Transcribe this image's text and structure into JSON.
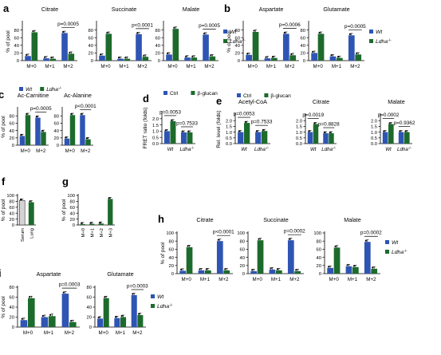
{
  "colors": {
    "blue": "#2e55b4",
    "green": "#1d6b2c",
    "gray": "#d4d4d4",
    "axis": "#000000"
  },
  "chart_data": [
    {
      "id": "a-citrate",
      "panel": "a",
      "type": "bar",
      "title": "Citrate",
      "ylabel": "% of pool",
      "ylim": [
        0,
        100
      ],
      "yticks": [
        0,
        20,
        40,
        60,
        80
      ],
      "categories": [
        "M+0",
        "M+1",
        "M+2"
      ],
      "series": [
        {
          "name": "Wt",
          "color": "blue",
          "values": [
            12,
            6,
            72
          ]
        },
        {
          "name": "Ldha-/-",
          "color": "green",
          "values": [
            74,
            5,
            18
          ]
        }
      ],
      "annotations": [
        {
          "text": "p=0.0005",
          "cats": [
            2,
            2
          ]
        }
      ]
    },
    {
      "id": "a-succinate",
      "panel": "",
      "type": "bar",
      "title": "Succinate",
      "ylabel": "",
      "ylim": [
        0,
        100
      ],
      "yticks": [
        0,
        20,
        40,
        60,
        80
      ],
      "categories": [
        "M+0",
        "M+1",
        "M+2"
      ],
      "series": [
        {
          "name": "Wt",
          "color": "blue",
          "values": [
            13,
            5,
            69
          ]
        },
        {
          "name": "Ldha-/-",
          "color": "green",
          "values": [
            70,
            5,
            10
          ]
        }
      ],
      "annotations": [
        {
          "text": "p<0.0001",
          "cats": [
            2,
            2
          ]
        }
      ]
    },
    {
      "id": "a-malate",
      "panel": "",
      "type": "bar",
      "title": "Malate",
      "ylabel": "",
      "ylim": [
        0,
        100
      ],
      "yticks": [
        0,
        20,
        40,
        60,
        80
      ],
      "categories": [
        "M+0",
        "M+1",
        "M+2"
      ],
      "series": [
        {
          "name": "Wt",
          "color": "blue",
          "values": [
            16,
            8,
            68
          ]
        },
        {
          "name": "Ldha-/-",
          "color": "green",
          "values": [
            83,
            8,
            11
          ]
        }
      ],
      "annotations": [
        {
          "text": "p=0.0005",
          "cats": [
            2,
            2
          ]
        }
      ],
      "legend": {
        "items": [
          "Wt",
          "Ldha-/-"
        ]
      }
    },
    {
      "id": "b-aspartate",
      "panel": "b",
      "type": "bar",
      "title": "Aspartate",
      "ylabel": "% of pool",
      "ylim": [
        0,
        100
      ],
      "yticks": [
        0,
        20,
        40,
        60,
        80
      ],
      "categories": [
        "M+0",
        "M+1",
        "M+2"
      ],
      "series": [
        {
          "name": "Wt",
          "color": "blue",
          "values": [
            15,
            6,
            70
          ]
        },
        {
          "name": "Ldha-/-",
          "color": "green",
          "values": [
            75,
            7,
            14
          ]
        }
      ],
      "annotations": [
        {
          "text": "p=0.0006",
          "cats": [
            2,
            2
          ]
        }
      ]
    },
    {
      "id": "b-glutamate",
      "panel": "",
      "type": "bar",
      "title": "Glutamate",
      "ylabel": "",
      "ylim": [
        0,
        100
      ],
      "yticks": [
        0,
        20,
        40,
        60,
        80
      ],
      "categories": [
        "M+0",
        "M+1",
        "M+2"
      ],
      "series": [
        {
          "name": "Wt",
          "color": "blue",
          "values": [
            20,
            11,
            66
          ]
        },
        {
          "name": "Ldha-/-",
          "color": "green",
          "values": [
            70,
            7,
            16
          ]
        }
      ],
      "annotations": [
        {
          "text": "p=0.0005",
          "cats": [
            2,
            2
          ]
        }
      ],
      "legend": {
        "items": [
          "Wt",
          "Ldha-/-"
        ]
      }
    },
    {
      "id": "c-acc",
      "panel": "c",
      "type": "bar",
      "title": "Ac-Carnitine",
      "ylabel": "% of pool",
      "ylim": [
        0,
        100
      ],
      "yticks": [
        0,
        20,
        40,
        60,
        80
      ],
      "categories": [
        "M+0",
        "M+2"
      ],
      "series": [
        {
          "name": "Wt",
          "color": "blue",
          "values": [
            25,
            75
          ]
        },
        {
          "name": "Ldha-/-",
          "color": "green",
          "values": [
            82,
            36
          ]
        }
      ],
      "annotations": [
        {
          "text": "p=0.0005",
          "cats": [
            1,
            1
          ]
        }
      ],
      "legend": {
        "items": [
          "Wt",
          "Ldha-/-"
        ],
        "pos": "top"
      }
    },
    {
      "id": "c-aca",
      "panel": "",
      "type": "bar",
      "title": "Ac-Alanine",
      "ylabel": "",
      "ylim": [
        0,
        100
      ],
      "yticks": [
        0,
        20,
        40,
        60,
        80
      ],
      "categories": [
        "M+0",
        "M+2"
      ],
      "series": [
        {
          "name": "Wt",
          "color": "blue",
          "values": [
            18,
            82
          ]
        },
        {
          "name": "Ldha-/-",
          "color": "green",
          "values": [
            82,
            16
          ]
        }
      ],
      "annotations": [
        {
          "text": "p<0.0001",
          "cats": [
            1,
            1
          ]
        }
      ]
    },
    {
      "id": "d-fret",
      "panel": "d",
      "type": "bar",
      "title": "",
      "ylabel": "FRET ratio (folds)",
      "ylim": [
        0,
        2.5
      ],
      "yticks": [
        0,
        0.5,
        1,
        1.5,
        2
      ],
      "yfmt": 1,
      "categories": [
        "Wt",
        "Ldha-/-"
      ],
      "series": [
        {
          "name": "Ctrl",
          "color": "blue",
          "values": [
            1.0,
            0.9
          ]
        },
        {
          "name": "β-glucan",
          "color": "green",
          "values": [
            1.8,
            0.9
          ]
        }
      ],
      "annotations": [
        {
          "text": "p=0.0053",
          "cats": [
            0,
            0
          ]
        },
        {
          "text": "p=0.7533",
          "cats": [
            1,
            1
          ]
        }
      ],
      "legend": {
        "items": [
          "Ctrl",
          "β-glucan"
        ],
        "pos": "top"
      }
    },
    {
      "id": "e-acoa",
      "panel": "e",
      "type": "bar",
      "title": "Acetyl-CoA",
      "ylabel": "Rel. level (folds)",
      "ylim": [
        0,
        2.5
      ],
      "yticks": [
        0,
        0.5,
        1,
        1.5,
        2
      ],
      "yfmt": 1,
      "categories": [
        "Wt",
        "Ldha-/-"
      ],
      "series": [
        {
          "name": "Ctrl",
          "color": "blue",
          "values": [
            1.0,
            1.0
          ]
        },
        {
          "name": "β-glucan",
          "color": "green",
          "values": [
            1.8,
            1.1
          ]
        }
      ],
      "annotations": [
        {
          "text": "p=0.0053",
          "cats": [
            0,
            0
          ]
        },
        {
          "text": "p=0.7533",
          "cats": [
            1,
            1
          ]
        }
      ],
      "legend": {
        "items": [
          "Ctrl",
          "β-glucan"
        ],
        "pos": "top"
      }
    },
    {
      "id": "e-citrate",
      "panel": "",
      "type": "bar",
      "title": "Citrate",
      "ylabel": "",
      "ylim": [
        0,
        2.5
      ],
      "yticks": [
        0,
        0.5,
        1,
        1.5,
        2
      ],
      "yfmt": 1,
      "categories": [
        "Wt",
        "Ldha-/-"
      ],
      "series": [
        {
          "name": "Ctrl",
          "color": "blue",
          "values": [
            1.0,
            0.9
          ]
        },
        {
          "name": "β-glucan",
          "color": "green",
          "values": [
            1.7,
            0.9
          ]
        }
      ],
      "annotations": [
        {
          "text": "p=0.0019",
          "cats": [
            0,
            0
          ]
        },
        {
          "text": "p=0.8828",
          "cats": [
            1,
            1
          ]
        }
      ]
    },
    {
      "id": "e-malate",
      "panel": "",
      "type": "bar",
      "title": "Malate",
      "ylabel": "",
      "ylim": [
        0,
        2.5
      ],
      "yticks": [
        0,
        0.5,
        1,
        1.5,
        2
      ],
      "yfmt": 1,
      "categories": [
        "Wt",
        "Ldha-/-"
      ],
      "series": [
        {
          "name": "Ctrl",
          "color": "blue",
          "values": [
            1.0,
            1.0
          ]
        },
        {
          "name": "β-glucan",
          "color": "green",
          "values": [
            1.7,
            1.0
          ]
        }
      ],
      "annotations": [
        {
          "text": "p=0.0002",
          "cats": [
            0,
            0
          ]
        },
        {
          "text": "p=0.9362",
          "cats": [
            1,
            1
          ]
        }
      ]
    },
    {
      "id": "f",
      "panel": "f",
      "type": "bar",
      "title": "",
      "ylabel": "% of pool",
      "ylim": [
        0,
        100
      ],
      "yticks": [
        0,
        20,
        40,
        60,
        80,
        100
      ],
      "categories": [
        "Serum",
        "Lung"
      ],
      "tickrot": true,
      "series": [
        {
          "name": "",
          "color": "gray",
          "values": [
            83,
            null
          ]
        },
        {
          "name": "",
          "color": "green",
          "values": [
            null,
            77
          ]
        }
      ]
    },
    {
      "id": "g",
      "panel": "g",
      "type": "bar",
      "title": "",
      "ylabel": "% of pool",
      "ylim": [
        0,
        100
      ],
      "yticks": [
        0,
        20,
        40,
        60,
        80,
        100
      ],
      "categories": [
        "M+0",
        "M+1",
        "M+2",
        "M+3"
      ],
      "tickrot": true,
      "series": [
        {
          "name": "",
          "color": "green",
          "values": [
            3,
            4,
            5,
            88
          ]
        }
      ]
    },
    {
      "id": "h-citrate",
      "panel": "h",
      "type": "bar",
      "title": "Citrate",
      "ylabel": "% of pool",
      "ylim": [
        0,
        100
      ],
      "yticks": [
        0,
        20,
        40,
        60,
        80,
        100
      ],
      "categories": [
        "M+0",
        "M+1",
        "M+2"
      ],
      "series": [
        {
          "name": "Wt",
          "color": "blue",
          "values": [
            7,
            8,
            80
          ]
        },
        {
          "name": "Ldha-/-",
          "color": "green",
          "values": [
            65,
            8,
            8
          ]
        }
      ],
      "annotations": [
        {
          "text": "p<0.0001",
          "cats": [
            2,
            2
          ]
        }
      ]
    },
    {
      "id": "h-succinate",
      "panel": "",
      "type": "bar",
      "title": "Succinate",
      "ylabel": "",
      "ylim": [
        0,
        100
      ],
      "yticks": [
        0,
        20,
        40,
        60,
        80,
        100
      ],
      "categories": [
        "M+0",
        "M+1",
        "M+2"
      ],
      "series": [
        {
          "name": "Wt",
          "color": "blue",
          "values": [
            6,
            10,
            82
          ]
        },
        {
          "name": "Ldha-/-",
          "color": "green",
          "values": [
            82,
            8,
            6
          ]
        }
      ],
      "annotations": [
        {
          "text": "p=0.0002",
          "cats": [
            2,
            2
          ]
        }
      ]
    },
    {
      "id": "h-malate",
      "panel": "",
      "type": "bar",
      "title": "Malate",
      "ylabel": "",
      "ylim": [
        0,
        100
      ],
      "yticks": [
        0,
        20,
        40,
        60,
        80,
        100
      ],
      "categories": [
        "M+0",
        "M+1",
        "M+2"
      ],
      "series": [
        {
          "name": "Wt",
          "color": "blue",
          "values": [
            14,
            18,
            78
          ]
        },
        {
          "name": "Ldha-/-",
          "color": "green",
          "values": [
            64,
            16,
            12
          ]
        }
      ],
      "annotations": [
        {
          "text": "p=0.0002",
          "cats": [
            2,
            2
          ]
        }
      ],
      "legend": {
        "items": [
          "Wt",
          "Ldha-/-"
        ]
      }
    },
    {
      "id": "i-aspartate",
      "panel": "i",
      "type": "bar",
      "title": "Aspartate",
      "ylabel": "% of pool",
      "ylim": [
        0,
        80
      ],
      "yticks": [
        0,
        20,
        40,
        60,
        80
      ],
      "categories": [
        "M+0",
        "M+1",
        "M+2"
      ],
      "series": [
        {
          "name": "Wt",
          "color": "blue",
          "values": [
            14,
            20,
            67
          ]
        },
        {
          "name": "Ldha-/-",
          "color": "green",
          "values": [
            58,
            22,
            10
          ]
        }
      ],
      "annotations": [
        {
          "text": "p=0.0003",
          "cats": [
            2,
            2
          ]
        }
      ]
    },
    {
      "id": "i-glutamate",
      "panel": "",
      "type": "bar",
      "title": "Glutamate",
      "ylabel": "",
      "ylim": [
        0,
        80
      ],
      "yticks": [
        0,
        20,
        40,
        60,
        80
      ],
      "categories": [
        "M+0",
        "M+1",
        "M+2"
      ],
      "series": [
        {
          "name": "Wt",
          "color": "blue",
          "values": [
            17,
            18,
            64
          ]
        },
        {
          "name": "Ldha-/-",
          "color": "green",
          "values": [
            58,
            20,
            24
          ]
        }
      ],
      "annotations": [
        {
          "text": "p=0.0003",
          "cats": [
            2,
            2
          ]
        }
      ],
      "legend": {
        "items": [
          "Wt",
          "Ldha-/-"
        ]
      }
    }
  ]
}
